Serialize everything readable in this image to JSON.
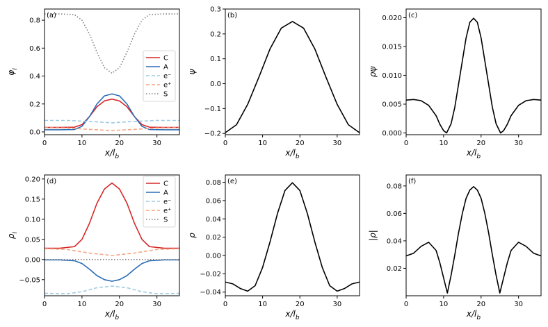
{
  "chart_data": [
    {
      "panel": "(a)",
      "type": "line",
      "xlabel": "x/l_b",
      "ylabel": "φ_i",
      "xlim": [
        0,
        36
      ],
      "ylim": [
        -0.02,
        0.88
      ],
      "xticks": [
        0,
        10,
        20,
        30
      ],
      "yticks": [
        0.0,
        0.2,
        0.4,
        0.6,
        0.8
      ],
      "ytick_labels": [
        "0.0",
        "0.2",
        "0.4",
        "0.6",
        "0.8"
      ],
      "legend": "right",
      "series": [
        {
          "name": "C",
          "color": "#d62728",
          "style": "solid",
          "x": [
            0,
            4,
            8,
            10,
            12,
            14,
            16,
            18,
            20,
            22,
            24,
            26,
            28,
            32,
            36
          ],
          "y": [
            0.032,
            0.032,
            0.034,
            0.052,
            0.11,
            0.18,
            0.222,
            0.235,
            0.222,
            0.18,
            0.11,
            0.052,
            0.034,
            0.032,
            0.032
          ]
        },
        {
          "name": "A",
          "color": "#2a6db5",
          "style": "solid",
          "x": [
            0,
            4,
            8,
            10,
            12,
            14,
            16,
            18,
            20,
            22,
            24,
            26,
            28,
            32,
            36
          ],
          "y": [
            0.015,
            0.015,
            0.017,
            0.04,
            0.11,
            0.2,
            0.258,
            0.272,
            0.258,
            0.2,
            0.11,
            0.04,
            0.017,
            0.015,
            0.015
          ]
        },
        {
          "name": "e⁻",
          "color": "#9ecae1",
          "style": "dashed",
          "x": [
            0,
            6,
            12,
            18,
            24,
            30,
            36
          ],
          "y": [
            0.082,
            0.082,
            0.075,
            0.065,
            0.075,
            0.082,
            0.082
          ]
        },
        {
          "name": "e⁺",
          "color": "#f4a582",
          "style": "dashed",
          "x": [
            0,
            6,
            12,
            18,
            24,
            30,
            36
          ],
          "y": [
            0.03,
            0.028,
            0.018,
            0.01,
            0.018,
            0.028,
            0.03
          ]
        },
        {
          "name": "S",
          "color": "#808080",
          "style": "dotted",
          "x": [
            0,
            4,
            8,
            10,
            12,
            14,
            16,
            18,
            20,
            22,
            24,
            26,
            28,
            32,
            36
          ],
          "y": [
            0.845,
            0.845,
            0.84,
            0.8,
            0.7,
            0.57,
            0.46,
            0.42,
            0.46,
            0.57,
            0.7,
            0.8,
            0.84,
            0.845,
            0.845
          ]
        }
      ]
    },
    {
      "panel": "(b)",
      "type": "line",
      "xlabel": "x/l_b",
      "ylabel": "ψ",
      "xlim": [
        0,
        36
      ],
      "ylim": [
        -0.205,
        0.3
      ],
      "xticks": [
        0,
        10,
        20,
        30
      ],
      "yticks": [
        -0.2,
        -0.1,
        0.0,
        0.1,
        0.2,
        0.3
      ],
      "ytick_labels": [
        "−0.2",
        "−0.1",
        "0.0",
        "0.1",
        "0.2",
        "0.3"
      ],
      "series": [
        {
          "name": "ψ",
          "color": "#000000",
          "style": "solid",
          "x": [
            0,
            3,
            6,
            9,
            12,
            15,
            18,
            21,
            24,
            27,
            30,
            33,
            36
          ],
          "y": [
            -0.197,
            -0.165,
            -0.083,
            0.026,
            0.14,
            0.223,
            0.25,
            0.223,
            0.14,
            0.026,
            -0.083,
            -0.165,
            -0.197
          ]
        }
      ]
    },
    {
      "panel": "(c)",
      "type": "line",
      "xlabel": "x/l_b",
      "ylabel": "ρψ",
      "xlim": [
        0,
        36
      ],
      "ylim": [
        -0.0003,
        0.0215
      ],
      "xticks": [
        0,
        10,
        20,
        30
      ],
      "yticks": [
        0.0,
        0.005,
        0.01,
        0.015,
        0.02
      ],
      "ytick_labels": [
        "0.000",
        "0.005",
        "0.010",
        "0.015",
        "0.020"
      ],
      "series": [
        {
          "name": "ρψ",
          "color": "#000000",
          "style": "solid",
          "x": [
            0,
            2,
            4,
            6,
            8,
            9,
            10,
            10.8,
            12,
            13,
            14,
            15,
            16,
            17,
            18,
            19,
            20,
            21,
            22,
            23,
            24,
            25.2,
            26,
            27,
            28,
            30,
            32,
            34,
            36
          ],
          "y": [
            0.0057,
            0.0058,
            0.0056,
            0.0048,
            0.003,
            0.0015,
            0.0004,
            0.0,
            0.0016,
            0.0045,
            0.0085,
            0.0125,
            0.0165,
            0.0192,
            0.0199,
            0.0192,
            0.0165,
            0.0125,
            0.0085,
            0.0045,
            0.0016,
            0.0,
            0.0004,
            0.0015,
            0.003,
            0.0048,
            0.0056,
            0.0058,
            0.0057
          ]
        }
      ]
    },
    {
      "panel": "(d)",
      "type": "line",
      "xlabel": "x/l_b",
      "ylabel": "ρ_i",
      "xlim": [
        0,
        36
      ],
      "ylim": [
        -0.09,
        0.21
      ],
      "xticks": [
        0,
        10,
        20,
        30
      ],
      "yticks": [
        -0.05,
        0.0,
        0.05,
        0.1,
        0.15,
        0.2
      ],
      "ytick_labels": [
        "−0.05",
        "0.00",
        "0.05",
        "0.10",
        "0.15",
        "0.20"
      ],
      "legend": "right",
      "series": [
        {
          "name": "C",
          "color": "#d62728",
          "style": "solid",
          "x": [
            0,
            4,
            8,
            10,
            12,
            14,
            16,
            18,
            20,
            22,
            24,
            26,
            28,
            32,
            36
          ],
          "y": [
            0.028,
            0.028,
            0.032,
            0.05,
            0.09,
            0.14,
            0.175,
            0.19,
            0.175,
            0.14,
            0.09,
            0.05,
            0.032,
            0.028,
            0.028
          ]
        },
        {
          "name": "A",
          "color": "#2a6db5",
          "style": "solid",
          "x": [
            0,
            4,
            8,
            10,
            12,
            14,
            16,
            18,
            20,
            22,
            24,
            26,
            28,
            32,
            36
          ],
          "y": [
            -0.001,
            -0.001,
            -0.003,
            -0.01,
            -0.024,
            -0.04,
            -0.05,
            -0.054,
            -0.05,
            -0.04,
            -0.024,
            -0.01,
            -0.003,
            -0.001,
            -0.001
          ]
        },
        {
          "name": "e⁻",
          "color": "#9ecae1",
          "style": "dashed",
          "x": [
            0,
            6,
            10,
            14,
            18,
            22,
            26,
            30,
            36
          ],
          "y": [
            -0.084,
            -0.085,
            -0.08,
            -0.07,
            -0.066,
            -0.07,
            -0.08,
            -0.085,
            -0.084
          ]
        },
        {
          "name": "e⁺",
          "color": "#f4a582",
          "style": "dashed",
          "x": [
            0,
            6,
            12,
            18,
            24,
            30,
            36
          ],
          "y": [
            0.027,
            0.025,
            0.016,
            0.01,
            0.016,
            0.025,
            0.027
          ]
        },
        {
          "name": "S",
          "color": "#808080",
          "style": "dotted",
          "x": [
            0,
            36
          ],
          "y": [
            0.0,
            0.0
          ]
        }
      ]
    },
    {
      "panel": "(e)",
      "type": "line",
      "xlabel": "x/l_b",
      "ylabel": "ρ",
      "xlim": [
        0,
        36
      ],
      "ylim": [
        -0.044,
        0.088
      ],
      "xticks": [
        0,
        10,
        20,
        30
      ],
      "yticks": [
        -0.04,
        -0.02,
        0.0,
        0.02,
        0.04,
        0.06,
        0.08
      ],
      "ytick_labels": [
        "−0.04",
        "−0.02",
        "0.00",
        "0.02",
        "0.04",
        "0.06",
        "0.08"
      ],
      "series": [
        {
          "name": "ρ",
          "color": "#000000",
          "style": "solid",
          "x": [
            0,
            2,
            4,
            6,
            8,
            10,
            12,
            14,
            16,
            18,
            20,
            22,
            24,
            26,
            28,
            30,
            32,
            34,
            36
          ],
          "y": [
            -0.029,
            -0.031,
            -0.036,
            -0.039,
            -0.033,
            -0.013,
            0.015,
            0.046,
            0.071,
            0.0795,
            0.071,
            0.046,
            0.015,
            -0.013,
            -0.033,
            -0.039,
            -0.036,
            -0.031,
            -0.029
          ]
        }
      ]
    },
    {
      "panel": "(f)",
      "type": "line",
      "xlabel": "x/l_b",
      "ylabel": "|ρ|",
      "xlim": [
        0,
        36
      ],
      "ylim": [
        0.0,
        0.088
      ],
      "xticks": [
        0,
        10,
        20,
        30
      ],
      "yticks": [
        0.02,
        0.04,
        0.06,
        0.08
      ],
      "ytick_labels": [
        "0.02",
        "0.04",
        "0.06",
        "0.08"
      ],
      "series": [
        {
          "name": "|ρ|",
          "color": "#000000",
          "style": "solid",
          "x": [
            0,
            2,
            4,
            6,
            8,
            9,
            10,
            11,
            12,
            13,
            14,
            15,
            16,
            17,
            18,
            19,
            20,
            21,
            22,
            23,
            24,
            25,
            26,
            27,
            28,
            30,
            32,
            34,
            36
          ],
          "y": [
            0.029,
            0.031,
            0.036,
            0.039,
            0.033,
            0.024,
            0.013,
            0.002,
            0.015,
            0.03,
            0.046,
            0.06,
            0.071,
            0.077,
            0.0795,
            0.077,
            0.071,
            0.06,
            0.046,
            0.03,
            0.015,
            0.002,
            0.013,
            0.024,
            0.033,
            0.039,
            0.036,
            0.031,
            0.029
          ]
        }
      ]
    }
  ]
}
